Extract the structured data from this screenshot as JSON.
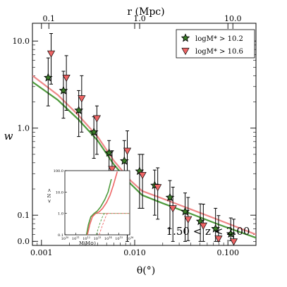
{
  "chart_data": [
    {
      "type": "scatter",
      "xlabel": "θ(°)",
      "ylabel": "w",
      "top_xlabel": "r (Mpc)",
      "xscale": "log",
      "yscale": "log",
      "xlim": [
        0.0008,
        0.2
      ],
      "ylim": [
        0.045,
        16
      ],
      "x_ticks": [
        0.001,
        0.01,
        0.1
      ],
      "x_tick_labels": [
        "0.001",
        "0.010",
        "0.100"
      ],
      "y_ticks": [
        0.1,
        1,
        10
      ],
      "y_tick_labels": [
        "0.1",
        "1.0",
        "10.0"
      ],
      "y_bottom_tick": 0.0501,
      "y_bottom_tick_label": "0.0",
      "top_ticks": [
        0.0012,
        0.0113,
        0.113
      ],
      "top_tick_labels": [
        "0.1",
        "1.0",
        "10.0"
      ],
      "annotation": "1.50 < z < 2.00",
      "legend_position": "top-right",
      "series": [
        {
          "name": "logM* > 10.2",
          "marker": "star",
          "color": "#3a7d28",
          "x": [
            0.00118,
            0.00172,
            0.00251,
            0.00365,
            0.00531,
            0.00774,
            0.01127,
            0.0164,
            0.02388,
            0.03476,
            0.0506,
            0.07367,
            0.10725
          ],
          "y": [
            3.8,
            2.7,
            1.6,
            0.9,
            0.52,
            0.42,
            0.32,
            0.22,
            0.16,
            0.11,
            0.085,
            0.07,
            0.061
          ],
          "yerr_lower": [
            2.0,
            1.4,
            0.8,
            0.45,
            0.28,
            0.35,
            0.2,
            0.12,
            0.09,
            0.06,
            0.035,
            0.02,
            0.01
          ],
          "yerr_upper": [
            2.6,
            1.8,
            1.1,
            0.45,
            0.2,
            0.3,
            0.18,
            0.11,
            0.09,
            0.07,
            0.05,
            0.05,
            0.032
          ]
        },
        {
          "name": "logM* > 10.6",
          "marker": "triangle-down",
          "color": "#ee6464",
          "x": [
            0.00127,
            0.00185,
            0.0027,
            0.00393,
            0.00572,
            0.00833,
            0.01213,
            0.01766,
            0.0257,
            0.03742,
            0.05447,
            0.07931,
            0.11546
          ],
          "y": [
            7.2,
            3.8,
            2.2,
            1.3,
            0.34,
            0.55,
            0.29,
            0.21,
            0.12,
            0.09,
            0.076,
            0.054,
            0.05
          ],
          "yerr_lower": [
            4.0,
            2.2,
            1.3,
            0.8,
            0.2,
            0.5,
            0.17,
            0.12,
            0.07,
            0.039,
            0.026,
            0.004,
            0.0
          ],
          "yerr_upper": [
            5.0,
            3.0,
            1.8,
            0.5,
            0.21,
            0.38,
            0.21,
            0.14,
            0.09,
            0.07,
            0.058,
            0.045,
            0.04
          ]
        }
      ],
      "model_curves": [
        {
          "color": "#ee8888",
          "x": [
            0.0008,
            0.0015,
            0.0025,
            0.004,
            0.006,
            0.009,
            0.012,
            0.02,
            0.04,
            0.08,
            0.2
          ],
          "y": [
            4.0,
            2.4,
            1.4,
            0.8,
            0.42,
            0.25,
            0.19,
            0.155,
            0.117,
            0.088,
            0.06
          ]
        },
        {
          "color": "#4e9a3c",
          "x": [
            0.0008,
            0.0015,
            0.0025,
            0.004,
            0.006,
            0.009,
            0.012,
            0.02,
            0.04,
            0.08,
            0.2
          ],
          "y": [
            3.4,
            2.1,
            1.25,
            0.72,
            0.38,
            0.23,
            0.17,
            0.137,
            0.104,
            0.078,
            0.055
          ]
        }
      ],
      "legend_entries": [
        "logM* > 10.2",
        "logM* > 10.6"
      ]
    },
    {
      "type": "line",
      "panel": "inset",
      "xlabel": "M(M⊙)",
      "ylabel": "< N >",
      "xscale": "log",
      "yscale": "log",
      "xlim": [
        10000000000.0,
        1e+16
      ],
      "ylim": [
        0.1,
        100
      ],
      "x_ticks": [
        10000000000.0,
        100000000000.0,
        1000000000000.0,
        10000000000000.0,
        100000000000000.0,
        1000000000000000.0,
        1e+16
      ],
      "x_tick_labels": [
        "10^10",
        "10^11",
        "10^12",
        "10^13",
        "10^14",
        "10^15",
        "10^16"
      ],
      "y_ticks": [
        0.1,
        1,
        10,
        100
      ],
      "y_tick_labels": [
        "0.1",
        "1.0",
        "10.0",
        "100.0"
      ],
      "series": [
        {
          "color": "#4e9a3c",
          "style": "solid",
          "x": [
            1000000000000.0,
            1500000000000.0,
            2500000000000.0,
            5000000000000.0,
            10000000000000.0,
            20000000000000.0,
            50000000000000.0,
            100000000000000.0,
            200000000000000.0
          ],
          "y": [
            0.1,
            0.3,
            0.7,
            1.0,
            1.3,
            2.0,
            4.5,
            10.0,
            40.0
          ]
        },
        {
          "color": "#ee6464",
          "style": "solid",
          "x": [
            1200000000000.0,
            2000000000000.0,
            3500000000000.0,
            7000000000000.0,
            15000000000000.0,
            30000000000000.0,
            70000000000000.0,
            150000000000000.0,
            300000000000000.0,
            700000000000000.0
          ],
          "y": [
            0.1,
            0.3,
            0.7,
            1.0,
            1.2,
            1.7,
            3.2,
            7.0,
            20.0,
            90.0
          ]
        },
        {
          "color": "#4e9a3c",
          "style": "dashed",
          "x": [
            1000000000000.0,
            1500000000000.0,
            2500000000000.0,
            5000000000000.0,
            10000000000000.0,
            100000000000000.0,
            1000000000000000.0,
            1e+16
          ],
          "y": [
            0.1,
            0.3,
            0.7,
            1.0,
            1.0,
            1.0,
            1.0,
            1.0
          ]
        },
        {
          "color": "#ee6464",
          "style": "dashed",
          "x": [
            1200000000000.0,
            2000000000000.0,
            3500000000000.0,
            7000000000000.0,
            15000000000000.0,
            100000000000000.0,
            1000000000000000.0,
            1e+16
          ],
          "y": [
            0.1,
            0.3,
            0.7,
            1.0,
            1.0,
            1.0,
            1.0,
            1.0
          ]
        },
        {
          "color": "#ee6464",
          "style": "dashed",
          "x": [
            15000000000000.0,
            30000000000000.0,
            60000000000000.0,
            100000000000000.0
          ],
          "y": [
            0.1,
            0.28,
            0.7,
            1.2
          ]
        },
        {
          "color": "#4e9a3c",
          "style": "dashed",
          "x": [
            8000000000000.0,
            16000000000000.0,
            30000000000000.0,
            50000000000000.0
          ],
          "y": [
            0.1,
            0.3,
            0.7,
            1.1
          ]
        }
      ]
    }
  ]
}
